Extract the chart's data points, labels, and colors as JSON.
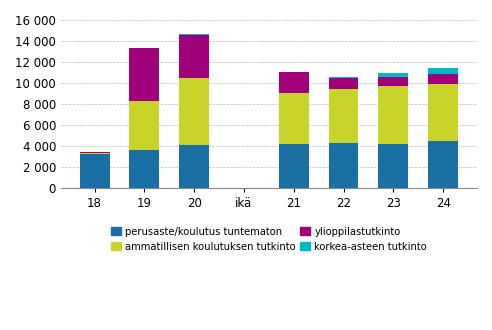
{
  "ages": [
    "18",
    "19",
    "20",
    "",
    "21",
    "22",
    "23",
    "24"
  ],
  "ika_label": "ikä",
  "ika_label_index": 3,
  "perusaste": [
    3200,
    3600,
    4100,
    0,
    4200,
    4250,
    4200,
    4500
  ],
  "ammatillinen": [
    100,
    4700,
    6400,
    0,
    4800,
    5150,
    5500,
    5400
  ],
  "ylioppilastutkinto": [
    80,
    5000,
    4050,
    0,
    2000,
    1100,
    900,
    950
  ],
  "korkea_asteen": [
    0,
    0,
    100,
    0,
    0,
    50,
    350,
    550
  ],
  "colors": {
    "perusaste": "#1a6fa5",
    "ammatillinen": "#c8d42a",
    "ylioppilastutkinto": "#a0007a",
    "korkea_asteen": "#00b8c8"
  },
  "legend_labels": [
    "perusaste/koulutus tuntematon",
    "ammatillisen koulutuksen tutkinto",
    "ylioppilastutkinto",
    "korkea-asteen tutkinto"
  ],
  "ylim": [
    0,
    16000
  ],
  "yticks": [
    0,
    2000,
    4000,
    6000,
    8000,
    10000,
    12000,
    14000,
    16000
  ],
  "grid_color": "#bbbbbb",
  "bar_width": 0.6
}
